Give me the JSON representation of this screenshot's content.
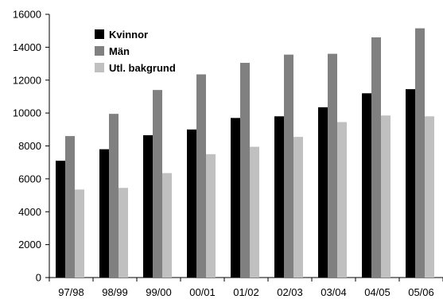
{
  "chart_data": {
    "type": "bar",
    "title": "",
    "xlabel": "",
    "ylabel": "",
    "categories": [
      "97/98",
      "98/99",
      "99/00",
      "00/01",
      "01/02",
      "02/03",
      "03/04",
      "04/05",
      "05/06"
    ],
    "ylim": [
      0,
      16000
    ],
    "yticks": [
      0,
      2000,
      4000,
      6000,
      8000,
      10000,
      12000,
      14000,
      16000
    ],
    "ytick_labels": [
      "0",
      "2000",
      "4000",
      "6000",
      "8000",
      "10000",
      "12000",
      "14000",
      "16000"
    ],
    "grid": false,
    "legend_position": "top-left",
    "series": [
      {
        "name": "Kvinnor",
        "color": "#000000",
        "values": [
          7100,
          7800,
          8650,
          9000,
          9700,
          9800,
          10350,
          11200,
          11450
        ]
      },
      {
        "name": "Män",
        "color": "#808080",
        "values": [
          8600,
          9950,
          11400,
          12350,
          13050,
          13550,
          13600,
          14600,
          15150
        ]
      },
      {
        "name": "Utl. bakgrund",
        "color": "#c0c0c0",
        "values": [
          5350,
          5450,
          6350,
          7500,
          7950,
          8550,
          9450,
          9850,
          9800
        ]
      }
    ]
  }
}
